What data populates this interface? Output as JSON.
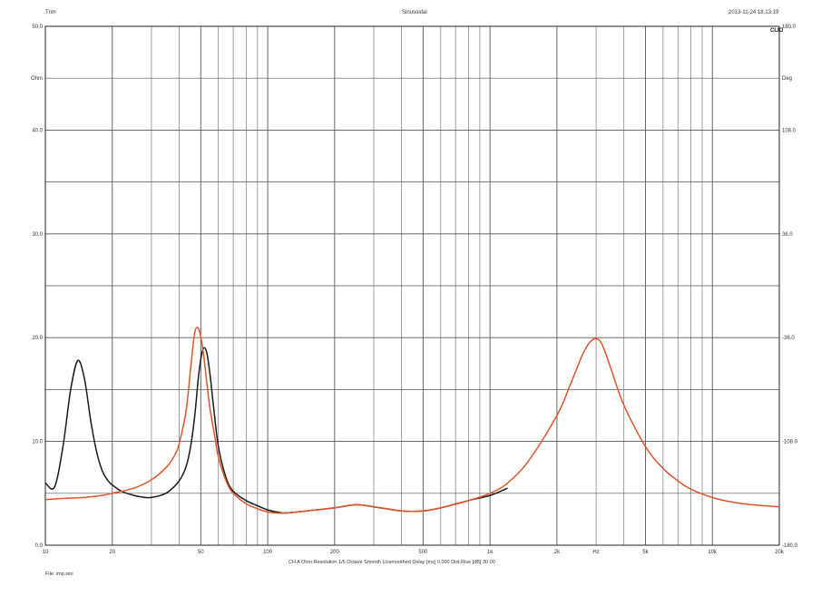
{
  "header": {
    "left": "Trim",
    "center": "Sinusoidal",
    "right": "2013-11-24 18.13.19"
  },
  "brand": "CLIO",
  "footer": {
    "settings": "CH A   Ohm   Resolution 1/6 Octave   Smooth Unsmoothed   Delay [ms] 0.000   Dist Rise [dB] 30.00",
    "file": "File: imp.sini"
  },
  "colors": {
    "black_curve": "#1a1a1a",
    "orange_curve": "#e0552a",
    "grid": "#555555",
    "grid_minor": "#777777"
  },
  "chart_data": {
    "type": "line",
    "title": "Sinusoidal",
    "x_scale": "log",
    "xlim": [
      10,
      20000
    ],
    "ylim": [
      0,
      50
    ],
    "y2lim": [
      -180,
      180
    ],
    "x_ticks": [
      10,
      20,
      50,
      100,
      200,
      500,
      1000,
      2000,
      5000,
      10000,
      20000
    ],
    "x_tick_labels": [
      "10",
      "20",
      "50",
      "100",
      "200",
      "500",
      "1k",
      "2k",
      "Hz",
      "5k",
      "10k",
      "20k"
    ],
    "x_tick_label_values": [
      10,
      20,
      50,
      100,
      200,
      500,
      1000,
      2000,
      3000,
      5000,
      10000,
      20000
    ],
    "y_ticks": [
      0,
      10,
      20,
      30,
      40,
      50
    ],
    "y_tick_labels": [
      "0.0",
      "10.0",
      "20.0",
      "30.0",
      "40.0",
      "50.0"
    ],
    "y_unit_label": "Ohm",
    "y_unit_at": 45,
    "y2_tick_labels": [
      "-180.0",
      "-108.0",
      "-36.0",
      "36.0",
      "108.0",
      "180.0"
    ],
    "y2_tick_values": [
      -180,
      -108,
      -36,
      36,
      108,
      180
    ],
    "y2_unit_label": "Deg",
    "y2_unit_at": 144,
    "grid": true,
    "series": [
      {
        "color": "#1a1a1a",
        "x": [
          10,
          11,
          12,
          13,
          14,
          15,
          16,
          17,
          18,
          19,
          20,
          22,
          25,
          28,
          30,
          33,
          36,
          40,
          43,
          45,
          47,
          49,
          51,
          53,
          55,
          57,
          60,
          65,
          70,
          80,
          90,
          100,
          110,
          120,
          150,
          200,
          250,
          300,
          400,
          500,
          600,
          800,
          1000,
          1200
        ],
        "y": [
          6.0,
          5.6,
          9.5,
          15.0,
          17.8,
          16.0,
          12.0,
          9.0,
          7.2,
          6.3,
          5.8,
          5.2,
          4.8,
          4.6,
          4.6,
          4.8,
          5.2,
          6.2,
          7.6,
          9.5,
          12.5,
          16.5,
          18.8,
          18.7,
          16.5,
          13.5,
          9.5,
          6.5,
          5.2,
          4.3,
          3.8,
          3.4,
          3.2,
          3.1,
          3.3,
          3.6,
          3.9,
          3.7,
          3.3,
          3.3,
          3.6,
          4.3,
          4.8,
          5.5
        ]
      },
      {
        "color": "#e0552a",
        "x": [
          10,
          12,
          15,
          18,
          20,
          25,
          30,
          35,
          38,
          40,
          43,
          45,
          47,
          49,
          51,
          53,
          55,
          58,
          60,
          65,
          70,
          80,
          90,
          100,
          110,
          120,
          150,
          200,
          250,
          300,
          400,
          500,
          600,
          800,
          1000,
          1200,
          1500,
          2000,
          2300,
          2600,
          2800,
          3000,
          3200,
          3500,
          4000,
          5000,
          6000,
          7000,
          8000,
          10000,
          12000,
          15000,
          20000
        ],
        "y": [
          4.4,
          4.5,
          4.6,
          4.8,
          5.0,
          5.5,
          6.3,
          7.5,
          8.6,
          9.8,
          13.0,
          17.0,
          20.5,
          20.8,
          19.0,
          16.0,
          13.2,
          10.3,
          8.5,
          6.2,
          5.0,
          4.0,
          3.5,
          3.2,
          3.1,
          3.1,
          3.3,
          3.6,
          3.9,
          3.7,
          3.3,
          3.3,
          3.6,
          4.3,
          5.0,
          6.0,
          8.2,
          12.5,
          15.5,
          18.3,
          19.5,
          19.9,
          19.3,
          17.0,
          13.5,
          9.5,
          7.4,
          6.2,
          5.4,
          4.6,
          4.2,
          3.9,
          3.7
        ]
      }
    ]
  }
}
